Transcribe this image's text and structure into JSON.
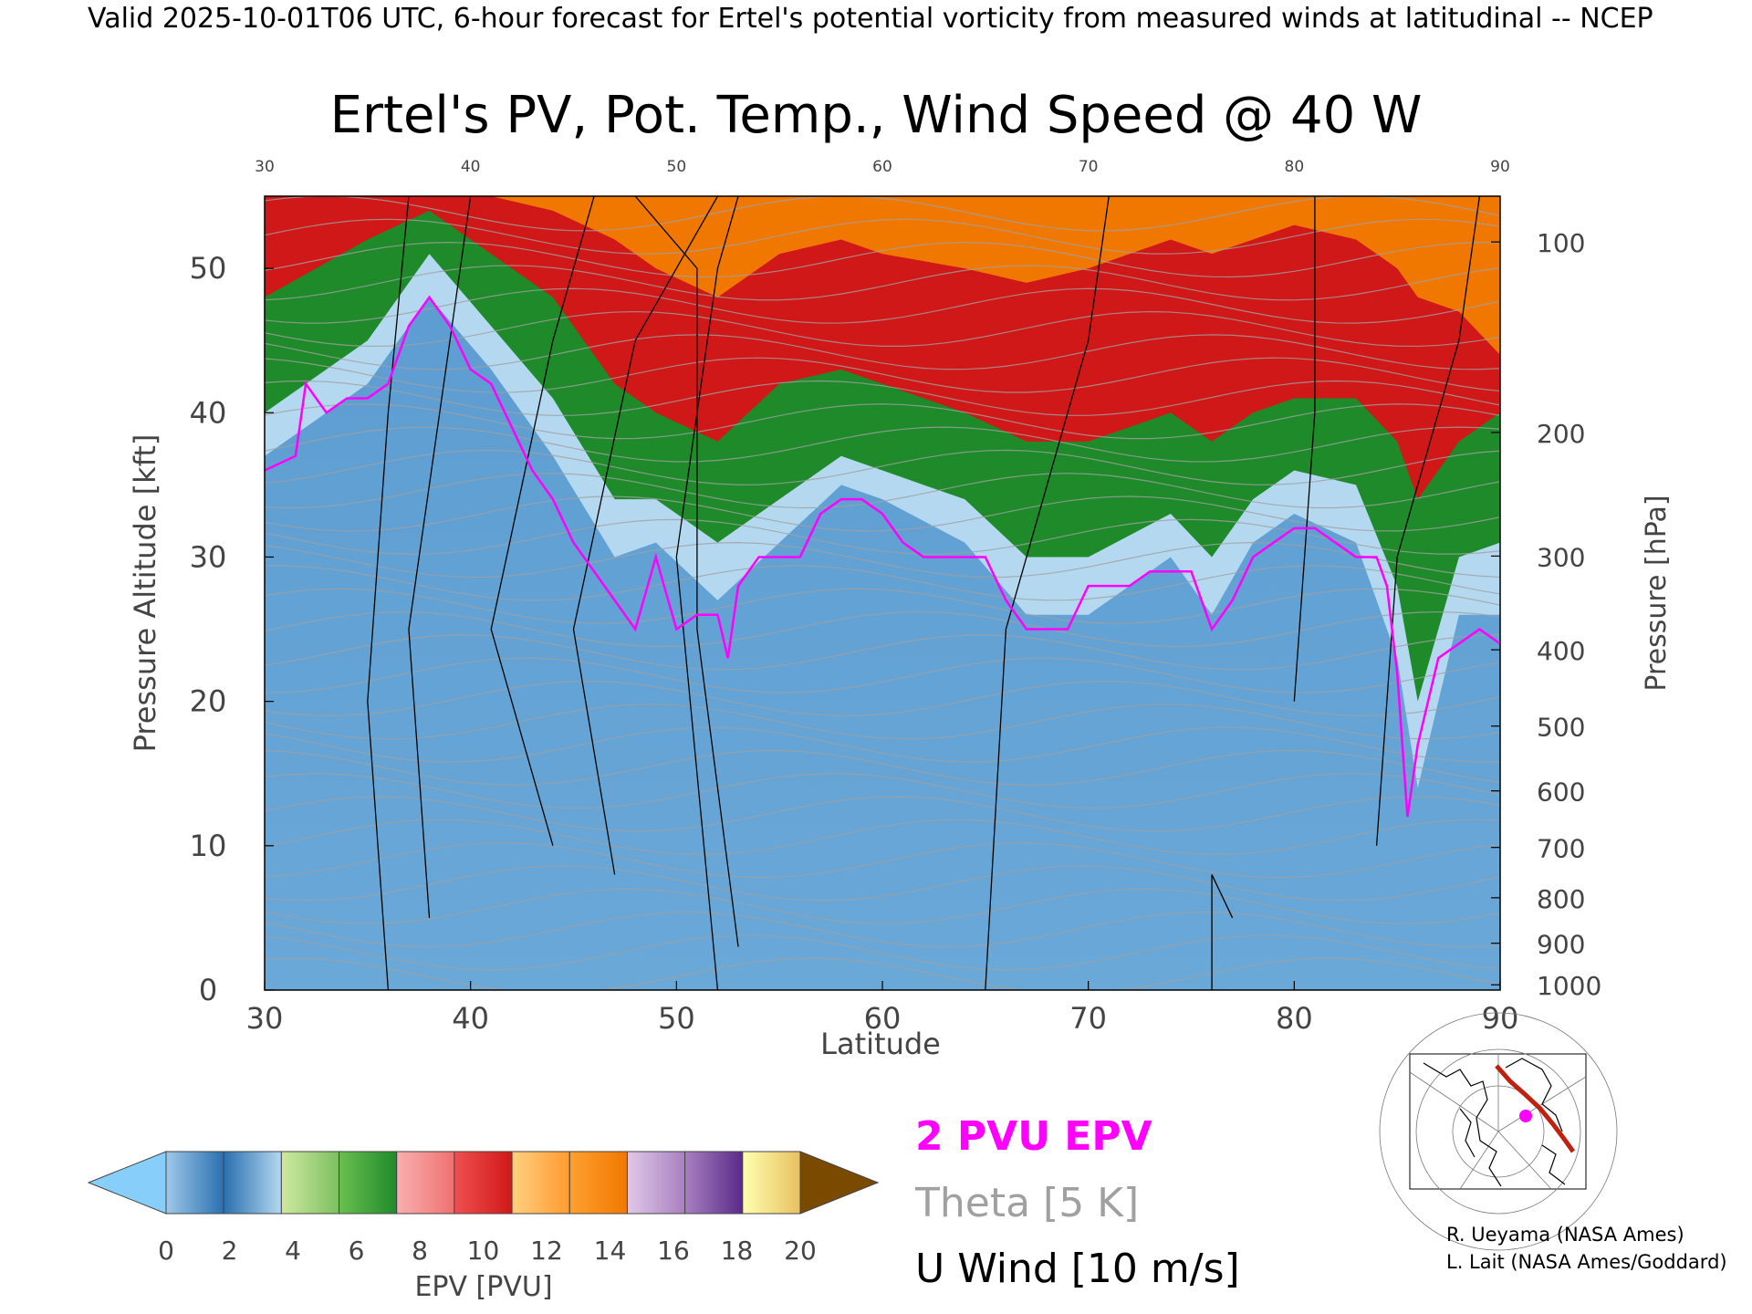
{
  "header": {
    "valid_line": "Valid 2025-10-01T06 UTC, 6-hour forecast for Ertel's potential vorticity from measured winds at latitudinal -- NCEP"
  },
  "chart_data": {
    "type": "heatmap",
    "title": "Ertel's PV, Pot. Temp., Wind Speed @ 40 W",
    "xlabel": "Latitude",
    "ylabel_left": "Pressure Altitude [kft]",
    "ylabel_right": "Pressure [hPa]",
    "xlim": [
      30,
      90
    ],
    "ylim": [
      0,
      55
    ],
    "x_ticks": [
      30,
      40,
      50,
      60,
      70,
      80,
      90
    ],
    "x_tick_labels": [
      "30",
      "40",
      "50",
      "60",
      "70",
      "80",
      "90"
    ],
    "y_ticks": [
      0,
      10,
      20,
      30,
      40,
      50
    ],
    "y_tick_labels": [
      "0",
      "10",
      "20",
      "30",
      "40",
      "50"
    ],
    "pressure_ticks": [
      {
        "hpa": 100,
        "label": "100"
      },
      {
        "hpa": 200,
        "label": "200"
      },
      {
        "hpa": 300,
        "label": "300"
      },
      {
        "hpa": 400,
        "label": "400"
      },
      {
        "hpa": 500,
        "label": "500"
      },
      {
        "hpa": 600,
        "label": "600"
      },
      {
        "hpa": 700,
        "label": "700"
      },
      {
        "hpa": 800,
        "label": "800"
      },
      {
        "hpa": 900,
        "label": "900"
      },
      {
        "hpa": 1000,
        "label": "1000"
      }
    ],
    "two_pvu_boundary": {
      "lat": [
        30,
        31.5,
        32,
        33,
        34,
        35,
        36,
        37,
        38,
        39,
        40,
        41,
        42,
        43,
        44,
        45,
        46,
        47,
        48,
        49,
        50,
        51,
        52,
        52.5,
        53,
        54,
        55,
        56,
        57,
        58,
        59,
        60,
        61,
        62,
        63,
        64,
        65,
        66,
        67,
        68,
        69,
        70,
        71,
        72,
        73,
        74,
        75,
        76,
        77,
        78,
        79,
        80,
        81,
        82,
        83,
        84,
        84.5,
        85,
        85.5,
        86,
        87,
        88,
        89,
        90
      ],
      "kft": [
        36,
        37,
        42,
        40,
        41,
        41,
        42,
        46,
        48,
        46,
        43,
        42,
        39,
        36,
        34,
        31,
        29,
        27,
        25,
        30,
        25,
        26,
        26,
        23,
        28,
        30,
        30,
        30,
        33,
        34,
        34,
        33,
        31,
        30,
        30,
        30,
        30,
        27,
        25,
        25,
        25,
        28,
        28,
        28,
        29,
        29,
        29,
        25,
        27,
        30,
        31,
        32,
        32,
        31,
        30,
        30,
        28,
        22,
        12,
        17,
        23,
        24,
        25,
        24
      ]
    },
    "epv_bands": [
      {
        "lat": [
          30,
          35,
          38,
          41,
          44,
          47,
          49,
          52,
          55,
          58,
          60,
          64,
          67,
          70,
          74,
          76,
          78,
          80,
          83,
          85,
          86,
          88,
          90
        ],
        "kft": [
          37,
          42,
          48,
          43,
          37,
          30,
          31,
          27,
          31,
          35,
          34,
          31,
          26,
          26,
          30,
          26,
          31,
          33,
          31,
          23,
          14,
          26,
          26
        ],
        "pvu": 2
      },
      {
        "lat": [
          30,
          35,
          38,
          41,
          44,
          47,
          49,
          52,
          55,
          58,
          60,
          64,
          67,
          70,
          74,
          76,
          78,
          80,
          83,
          85,
          86,
          88,
          90
        ],
        "kft": [
          40,
          45,
          51,
          46,
          41,
          34,
          34,
          31,
          34,
          37,
          36,
          34,
          30,
          30,
          33,
          30,
          34,
          36,
          35,
          28,
          20,
          30,
          31
        ],
        "pvu": 6
      },
      {
        "lat": [
          30,
          35,
          38,
          41,
          44,
          47,
          49,
          52,
          55,
          58,
          60,
          64,
          67,
          70,
          74,
          76,
          78,
          80,
          83,
          85,
          86,
          88,
          90
        ],
        "kft": [
          48,
          52,
          54,
          51,
          48,
          42,
          40,
          38,
          42,
          43,
          42,
          40,
          38,
          38,
          40,
          38,
          40,
          41,
          41,
          38,
          34,
          38,
          40
        ],
        "pvu": 10
      },
      {
        "lat": [
          30,
          35,
          38,
          41,
          44,
          47,
          49,
          52,
          55,
          58,
          60,
          64,
          67,
          70,
          74,
          76,
          78,
          80,
          83,
          85,
          86,
          88,
          90
        ],
        "kft": [
          55,
          55,
          55,
          55,
          54,
          52,
          50,
          48,
          51,
          52,
          51,
          50,
          49,
          50,
          52,
          51,
          52,
          53,
          52,
          50,
          48,
          47,
          44
        ],
        "pvu": 13
      }
    ],
    "theta_interval_k": 5,
    "legend_entries": [
      {
        "label": "2 PVU EPV",
        "color": "#ff00ff"
      },
      {
        "label": "Theta [5 K]",
        "color": "#a0a0a0"
      },
      {
        "label": "U Wind [10 m/s]",
        "color": "#000000"
      }
    ],
    "colorbar": {
      "label": "EPV [PVU]",
      "min": 0,
      "max": 20,
      "tick_labels": [
        "0",
        "2",
        "4",
        "6",
        "8",
        "10",
        "12",
        "14",
        "16",
        "18",
        "20"
      ],
      "extend": "both",
      "under_color": "#87cefa",
      "over_color": "#7a4a00",
      "segments": [
        [
          "#9fc8e8",
          "#2a6fb0"
        ],
        [
          "#2a6fb0",
          "#b4d8f0"
        ],
        [
          "#d0e8a0",
          "#7cc060"
        ],
        [
          "#6abf50",
          "#1f8a2a"
        ],
        [
          "#f8b0b0",
          "#f07070"
        ],
        [
          "#f05050",
          "#d01818"
        ],
        [
          "#ffd080",
          "#ff9a30"
        ],
        [
          "#ffa030",
          "#f07800"
        ],
        [
          "#e0c8e8",
          "#a880c0"
        ],
        [
          "#a880c0",
          "#5a2a8a"
        ],
        [
          "#ffffb0",
          "#e8c060"
        ]
      ]
    }
  },
  "inset": {
    "credit_line1": "R. Ueyama (NASA Ames)",
    "credit_line2": "L. Lait (NASA Ames/Goddard)"
  },
  "colors": {
    "pvu_line": "#ff00ff",
    "theta": "#a0a0a0",
    "wind": "#000000",
    "track": "#c02010"
  }
}
